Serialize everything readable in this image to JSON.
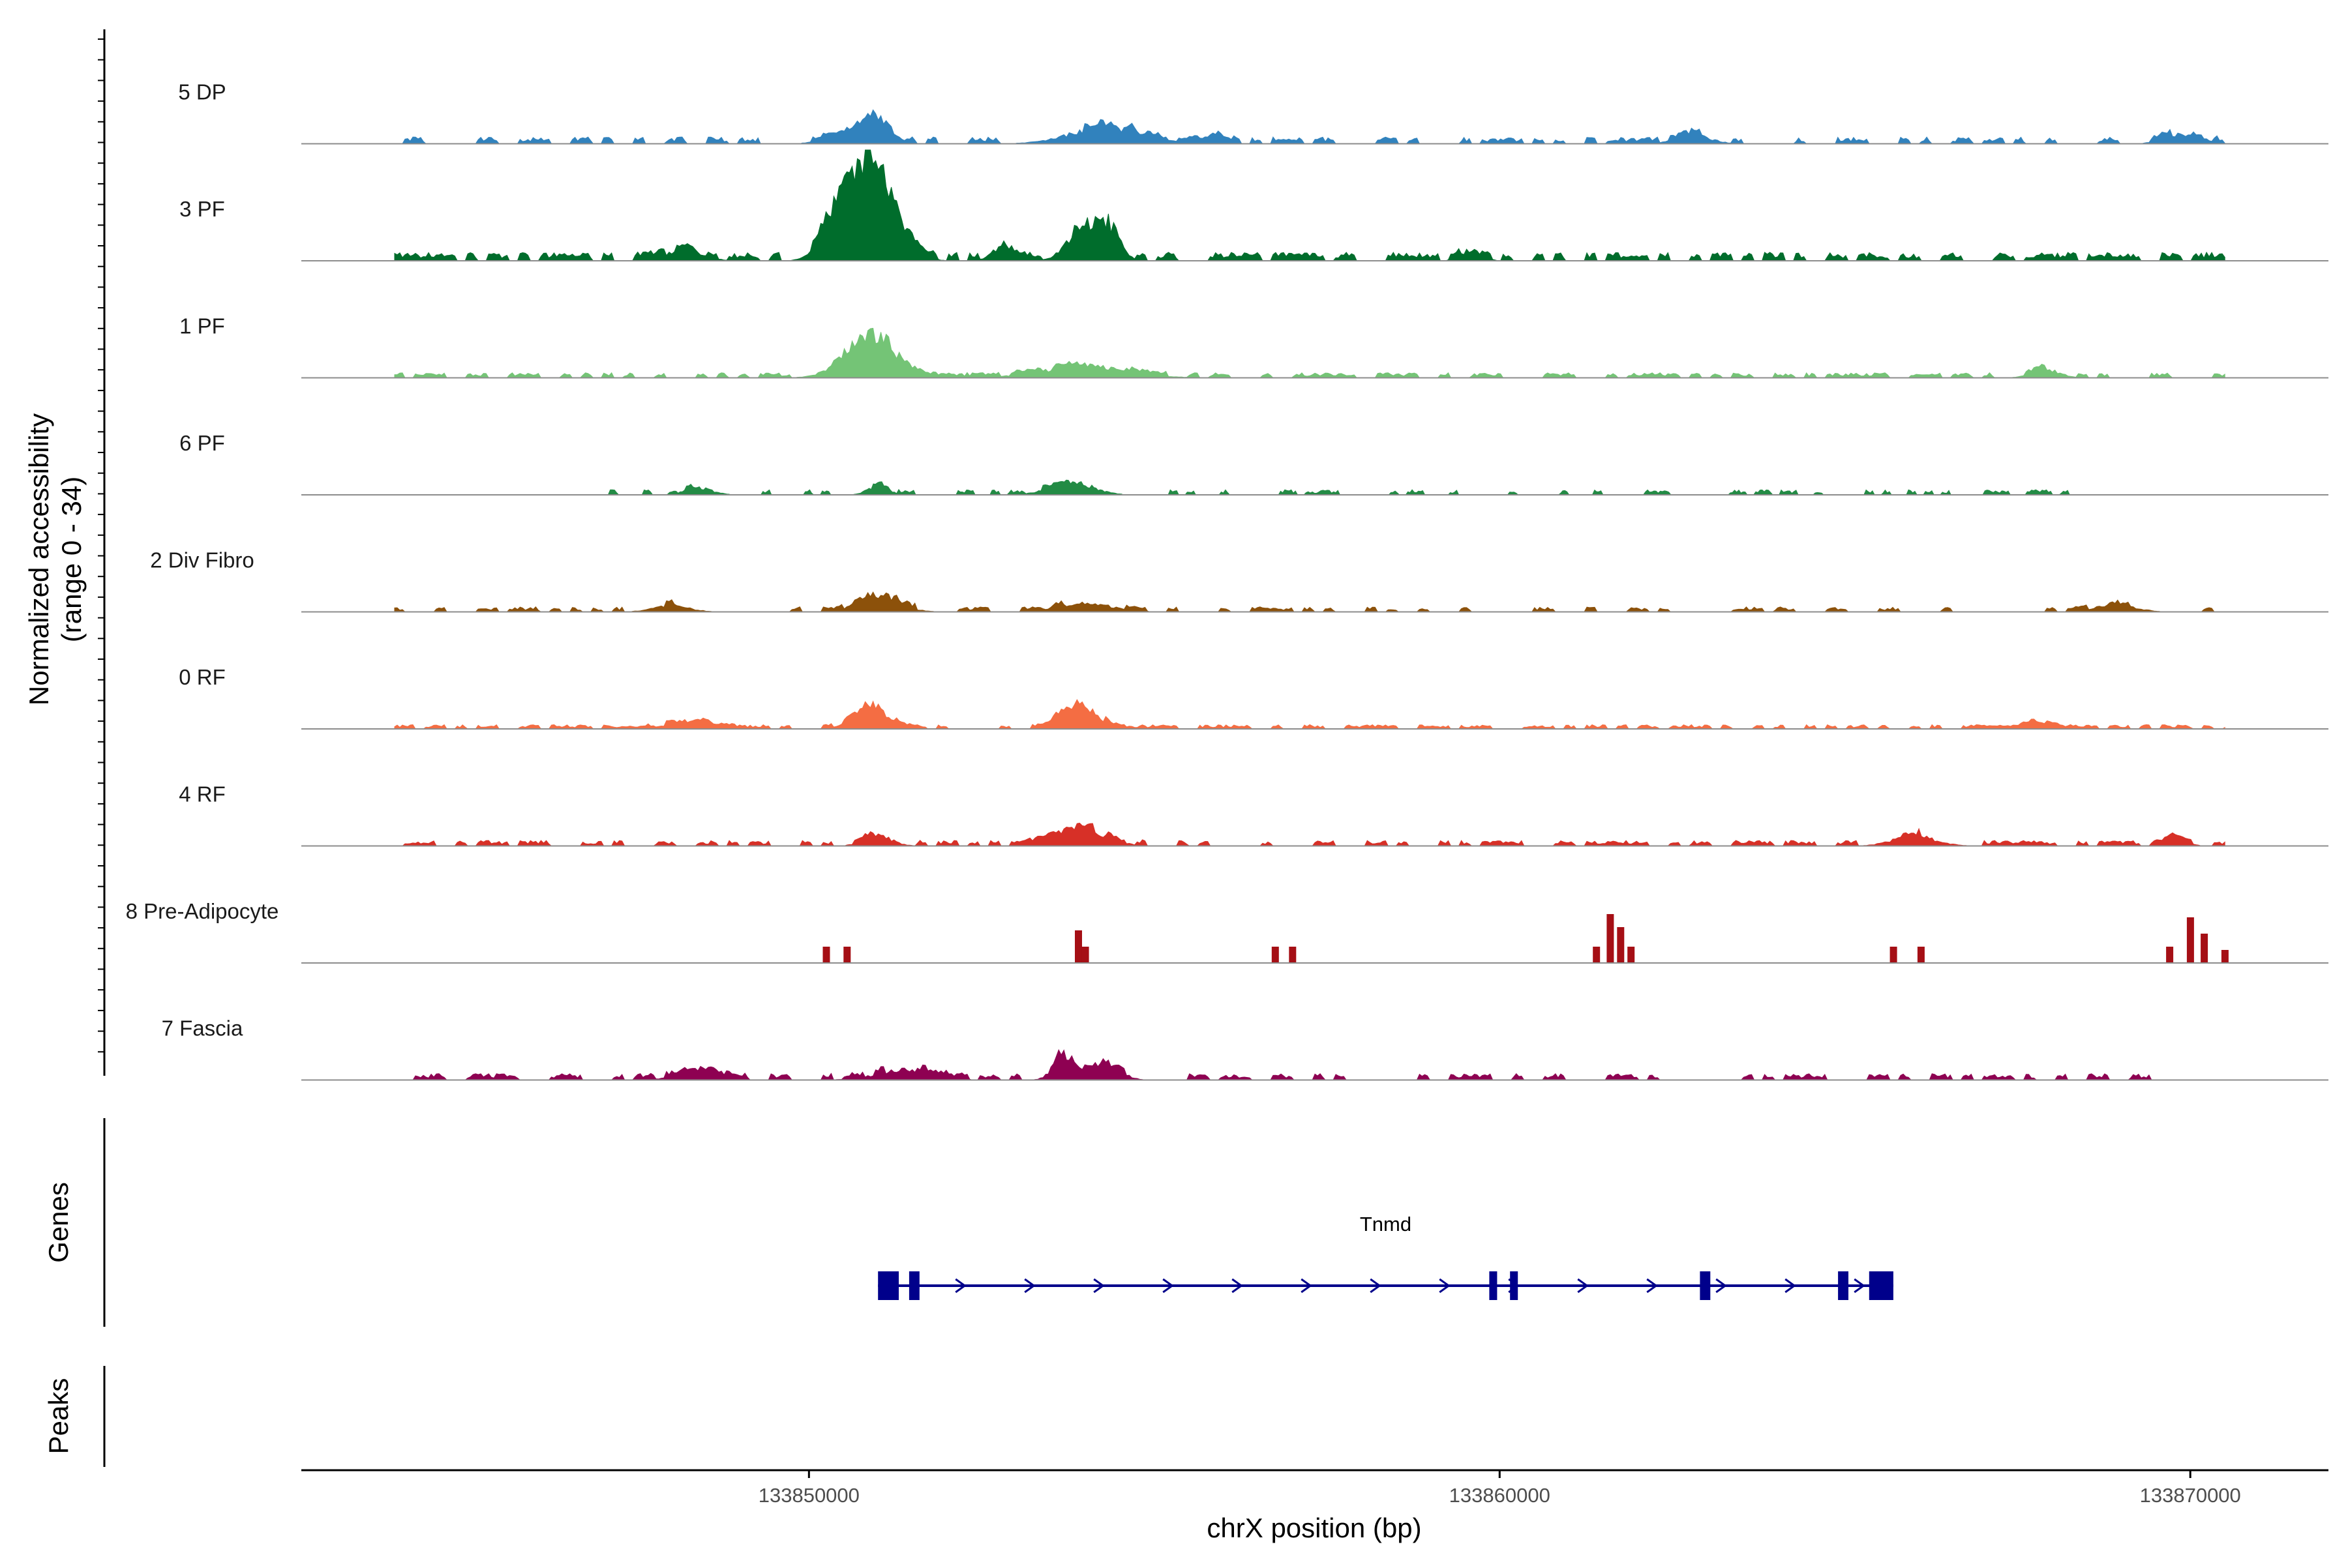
{
  "colors": {
    "background": "#ffffff",
    "baseline": "#8c8c8c",
    "axis": "#000000",
    "gene": "#00008b"
  },
  "chart_data": {
    "type": "area",
    "title": "",
    "ylabel": "Normalized accessibility",
    "ylabel_sub": "(range 0 - 34)",
    "xlabel": "chrX position (bp)",
    "xlim": [
      133842650,
      133872000
    ],
    "ylim": [
      0,
      34
    ],
    "xticks": [
      133850000,
      133860000,
      133870000
    ],
    "xtick_labels": [
      "133850000",
      "133860000",
      "133870000"
    ],
    "grid": false,
    "legend": "none",
    "tracks": [
      {
        "name": "5 DP",
        "color": "#3182bd",
        "noise": 1.6,
        "density": 0.5,
        "region": [
          133844000,
          133870500
        ],
        "peaks": [
          [
            133851000,
            7.8,
            180
          ],
          [
            133850600,
            3.0,
            300
          ],
          [
            133854300,
            5.0,
            500
          ],
          [
            133855800,
            2.0,
            200
          ],
          [
            133862800,
            2.5,
            250
          ],
          [
            133869900,
            3.0,
            250
          ]
        ]
      },
      {
        "name": "3 PF",
        "color": "#006d2c",
        "noise": 2.0,
        "density": 0.62,
        "region": [
          133844000,
          133870500
        ],
        "peaks": [
          [
            133850500,
            17.0,
            250
          ],
          [
            133851000,
            25.0,
            300
          ],
          [
            133853900,
            8.0,
            200
          ],
          [
            133854300,
            9.5,
            180
          ],
          [
            133852800,
            4.0,
            150
          ],
          [
            133848200,
            3.5,
            250
          ],
          [
            133859600,
            3.5,
            150
          ]
        ]
      },
      {
        "name": "1 PF",
        "color": "#74c476",
        "noise": 1.2,
        "density": 0.5,
        "region": [
          133844000,
          133870500
        ],
        "peaks": [
          [
            133851000,
            11.0,
            300
          ],
          [
            133850600,
            4.0,
            300
          ],
          [
            133854000,
            3.5,
            600
          ],
          [
            133867900,
            2.5,
            200
          ]
        ]
      },
      {
        "name": "6 PF",
        "color": "#238b45",
        "noise": 1.2,
        "density": 0.32,
        "region": [
          133847000,
          133868500
        ],
        "peaks": [
          [
            133853800,
            4.0,
            300
          ],
          [
            133851000,
            2.5,
            150
          ],
          [
            133848400,
            2.0,
            200
          ]
        ]
      },
      {
        "name": "2 Div Fibro",
        "color": "#8c510a",
        "noise": 1.2,
        "density": 0.36,
        "region": [
          133844000,
          133870500
        ],
        "peaks": [
          [
            133851000,
            4.5,
            300
          ],
          [
            133848000,
            2.0,
            250
          ],
          [
            133854000,
            2.5,
            400
          ],
          [
            133868900,
            2.0,
            300
          ]
        ]
      },
      {
        "name": "0 RF",
        "color": "#f46d43",
        "noise": 1.0,
        "density": 0.62,
        "region": [
          133844000,
          133870500
        ],
        "peaks": [
          [
            133850900,
            6.5,
            250
          ],
          [
            133853900,
            8.0,
            250
          ],
          [
            133848300,
            2.5,
            300
          ],
          [
            133867800,
            2.0,
            200
          ]
        ]
      },
      {
        "name": "4 RF",
        "color": "#d73027",
        "noise": 1.3,
        "density": 0.5,
        "region": [
          133844000,
          133870500
        ],
        "peaks": [
          [
            133853900,
            6.0,
            350
          ],
          [
            133851000,
            3.0,
            200
          ],
          [
            133866000,
            3.0,
            300
          ],
          [
            133869800,
            2.5,
            150
          ]
        ]
      },
      {
        "name": "8 Pre-Adipocyte",
        "color": "#a50f15",
        "noise": 0,
        "density": 0,
        "region": [
          133850000,
          133871000
        ],
        "bars": [
          [
            133850200,
            5
          ],
          [
            133850500,
            5
          ],
          [
            133853850,
            10
          ],
          [
            133853950,
            5
          ],
          [
            133856700,
            5
          ],
          [
            133856950,
            5
          ],
          [
            133861350,
            5
          ],
          [
            133861550,
            15
          ],
          [
            133861700,
            11
          ],
          [
            133861850,
            5
          ],
          [
            133865650,
            5
          ],
          [
            133866050,
            5
          ],
          [
            133869650,
            5
          ],
          [
            133869950,
            14
          ],
          [
            133870150,
            9
          ],
          [
            133870450,
            4
          ]
        ]
      },
      {
        "name": "7 Fascia",
        "color": "#8e0152",
        "noise": 1.5,
        "density": 0.5,
        "region": [
          133844000,
          133870500
        ],
        "peaks": [
          [
            133853700,
            8.0,
            150
          ],
          [
            133854300,
            5.0,
            200
          ],
          [
            133851400,
            3.0,
            400
          ],
          [
            133848400,
            2.5,
            300
          ]
        ]
      }
    ],
    "genes": {
      "title": "Genes",
      "name": "Tnmd",
      "strand": "+",
      "start": 133851000,
      "end": 133865700,
      "exons": [
        [
          133851000,
          133851300
        ],
        [
          133851450,
          133851600
        ],
        [
          133859850,
          133859950
        ],
        [
          133860150,
          133860250
        ],
        [
          133862900,
          133863050
        ],
        [
          133864900,
          133865050
        ],
        [
          133865350,
          133865700
        ]
      ]
    },
    "peaks_track": {
      "title": "Peaks",
      "regions": []
    }
  }
}
